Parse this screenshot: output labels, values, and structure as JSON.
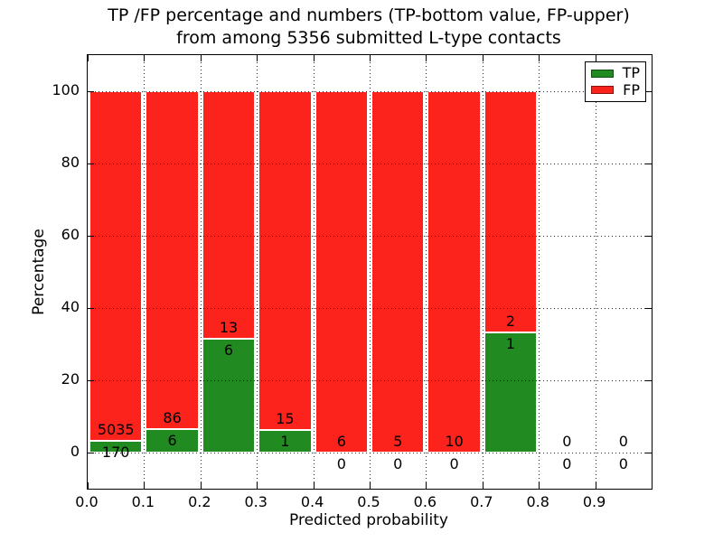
{
  "chart_data": {
    "type": "bar",
    "stacked": true,
    "title_line1": "TP /FP percentage and numbers (TP-bottom value, FP-upper)",
    "title_line2": "from among 5356 submitted L-type contacts",
    "xlabel": "Predicted probability",
    "ylabel": "Percentage",
    "xlim": [
      0.0,
      1.0
    ],
    "ylim": [
      -10,
      110
    ],
    "grid": "dotted",
    "legend_position": "upper right",
    "xticks": [
      "0.0",
      "0.1",
      "0.2",
      "0.3",
      "0.4",
      "0.5",
      "0.6",
      "0.7",
      "0.8",
      "0.9"
    ],
    "yticks": [
      0,
      20,
      40,
      60,
      80,
      100
    ],
    "colors": {
      "tp": "#218a21",
      "fp": "#fb231b"
    },
    "legend": [
      {
        "name": "TP",
        "color": "#218a21"
      },
      {
        "name": "FP",
        "color": "#fb231b"
      }
    ],
    "bin_edges": [
      0.0,
      0.1,
      0.2,
      0.3,
      0.4,
      0.5,
      0.6,
      0.7,
      0.8,
      0.9,
      1.0
    ],
    "bins": [
      {
        "range": "0.0-0.1",
        "tp_count": "170",
        "fp_count": "5035",
        "tp_pct": 3.27,
        "fp_pct": 96.73
      },
      {
        "range": "0.1-0.2",
        "tp_count": "6",
        "fp_count": "86",
        "tp_pct": 6.52,
        "fp_pct": 93.48
      },
      {
        "range": "0.2-0.3",
        "tp_count": "6",
        "fp_count": "13",
        "tp_pct": 31.58,
        "fp_pct": 68.42
      },
      {
        "range": "0.3-0.4",
        "tp_count": "1",
        "fp_count": "15",
        "tp_pct": 6.25,
        "fp_pct": 93.75
      },
      {
        "range": "0.4-0.5",
        "tp_count": "0",
        "fp_count": "6",
        "tp_pct": 0,
        "fp_pct": 100
      },
      {
        "range": "0.5-0.6",
        "tp_count": "0",
        "fp_count": "5",
        "tp_pct": 0,
        "fp_pct": 100
      },
      {
        "range": "0.6-0.7",
        "tp_count": "0",
        "fp_count": "10",
        "tp_pct": 0,
        "fp_pct": 100
      },
      {
        "range": "0.7-0.8",
        "tp_count": "1",
        "fp_count": "2",
        "tp_pct": 33.33,
        "fp_pct": 66.67
      },
      {
        "range": "0.8-0.9",
        "tp_count": "0",
        "fp_count": "0",
        "tp_pct": 0,
        "fp_pct": 0
      },
      {
        "range": "0.9-1.0",
        "tp_count": "0",
        "fp_count": "0",
        "tp_pct": 0,
        "fp_pct": 0
      }
    ]
  }
}
